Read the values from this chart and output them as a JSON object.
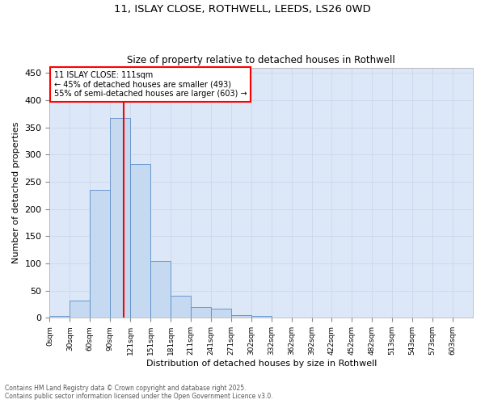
{
  "title_line1": "11, ISLAY CLOSE, ROTHWELL, LEEDS, LS26 0WD",
  "title_line2": "Size of property relative to detached houses in Rothwell",
  "xlabel": "Distribution of detached houses by size in Rothwell",
  "ylabel": "Number of detached properties",
  "bin_labels": [
    "0sqm",
    "30sqm",
    "60sqm",
    "90sqm",
    "121sqm",
    "151sqm",
    "181sqm",
    "211sqm",
    "241sqm",
    "271sqm",
    "302sqm",
    "332sqm",
    "362sqm",
    "392sqm",
    "422sqm",
    "452sqm",
    "482sqm",
    "513sqm",
    "543sqm",
    "573sqm",
    "603sqm"
  ],
  "bar_heights": [
    3,
    31,
    235,
    367,
    282,
    105,
    41,
    20,
    17,
    5,
    3,
    1,
    0,
    0,
    0,
    1,
    0,
    0,
    0,
    0,
    0
  ],
  "bar_color": "#c5d9f0",
  "bar_edge_color": "#5b8cc8",
  "vline_x": 111,
  "vline_color": "red",
  "ylim": [
    0,
    460
  ],
  "yticks": [
    0,
    50,
    100,
    150,
    200,
    250,
    300,
    350,
    400,
    450
  ],
  "annotation_title": "11 ISLAY CLOSE: 111sqm",
  "annotation_line2": "← 45% of detached houses are smaller (493)",
  "annotation_line3": "55% of semi-detached houses are larger (603) →",
  "annotation_box_facecolor": "#ffffff",
  "annotation_box_edgecolor": "red",
  "footer_line1": "Contains HM Land Registry data © Crown copyright and database right 2025.",
  "footer_line2": "Contains public sector information licensed under the Open Government Licence v3.0.",
  "background_color": "#ffffff",
  "grid_color": "#c8d4e8",
  "axes_background": "#dce8f8"
}
